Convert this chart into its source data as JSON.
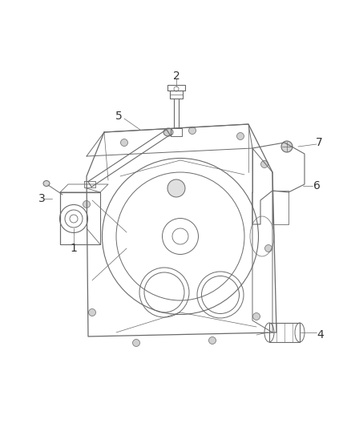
{
  "bg_color": "#ffffff",
  "lc": "#6a6a6a",
  "lc_dark": "#444444",
  "lc_light": "#999999",
  "lw": 0.7,
  "fig_width": 4.38,
  "fig_height": 5.33,
  "dpi": 100
}
